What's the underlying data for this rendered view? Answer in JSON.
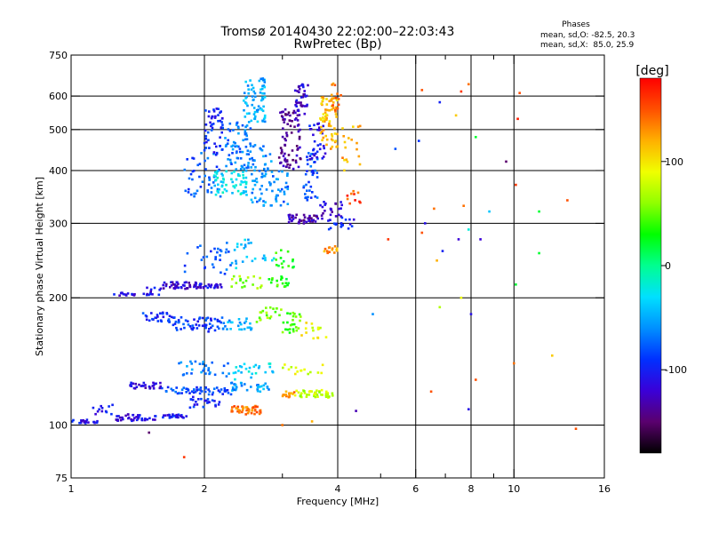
{
  "chart_data": {
    "type": "scatter",
    "title": "Tromsø 20140430 22:02:00–22:03:43",
    "subtitle": "RwPretec (Bp)",
    "xlabel": "Frequency [MHz]",
    "ylabel": "Stationary phase Virtual Height [km]",
    "x_scale": "log",
    "y_scale": "log",
    "xlim": [
      1,
      16
    ],
    "ylim": [
      75,
      750
    ],
    "x_ticks": [
      1,
      2,
      4,
      6,
      8,
      10,
      16
    ],
    "y_ticks": [
      75,
      100,
      200,
      300,
      400,
      500,
      600,
      750
    ],
    "x_minor_ticks": [
      3,
      5,
      7,
      9
    ],
    "grid": true,
    "phase_stats": {
      "header": "Phases",
      "line1": "mean, sd,O: -82.5, 20.3",
      "line2": "mean, sd,X:  85.0, 25.9"
    },
    "colorbar": {
      "label": "[deg]",
      "range": [
        -180,
        180
      ],
      "ticks": [
        -100,
        0,
        100
      ],
      "colors": [
        "#000000",
        "#5a006e",
        "#3a00d8",
        "#0030ff",
        "#0090ff",
        "#00e0ff",
        "#00ff90",
        "#00ff00",
        "#90ff00",
        "#f0ff00",
        "#ffb000",
        "#ff5000",
        "#ff0000"
      ]
    },
    "clusters": [
      {
        "x": [
          1.0,
          1.15
        ],
        "y": [
          101,
          103
        ],
        "phase": -108,
        "n": 18
      },
      {
        "x": [
          1.12,
          1.25
        ],
        "y": [
          106,
          112
        ],
        "phase": -102,
        "n": 12
      },
      {
        "x": [
          1.25,
          1.55
        ],
        "y": [
          102,
          106
        ],
        "phase": -112,
        "n": 40
      },
      {
        "x": [
          1.55,
          1.85
        ],
        "y": [
          104,
          106
        ],
        "phase": -105,
        "n": 30
      },
      {
        "x": [
          1.85,
          2.2
        ],
        "y": [
          110,
          118
        ],
        "phase": -98,
        "n": 25
      },
      {
        "x": [
          2.3,
          2.7
        ],
        "y": [
          106,
          111
        ],
        "phase": 140,
        "n": 45
      },
      {
        "x": [
          1.35,
          1.6
        ],
        "y": [
          122,
          126
        ],
        "phase": -118,
        "n": 30
      },
      {
        "x": [
          1.6,
          2.3
        ],
        "y": [
          118,
          123
        ],
        "phase": -85,
        "n": 55
      },
      {
        "x": [
          2.3,
          2.8
        ],
        "y": [
          120,
          126
        ],
        "phase": -55,
        "n": 35
      },
      {
        "x": [
          3.0,
          3.2
        ],
        "y": [
          116,
          121
        ],
        "phase": 130,
        "n": 14
      },
      {
        "x": [
          3.2,
          3.9
        ],
        "y": [
          116,
          121
        ],
        "phase": 75,
        "n": 45
      },
      {
        "x": [
          1.75,
          2.3
        ],
        "y": [
          130,
          142
        ],
        "phase": -60,
        "n": 30
      },
      {
        "x": [
          2.3,
          2.9
        ],
        "y": [
          128,
          140
        ],
        "phase": -35,
        "n": 25
      },
      {
        "x": [
          3.0,
          3.7
        ],
        "y": [
          132,
          140
        ],
        "phase": 80,
        "n": 15
      },
      {
        "x": [
          1.45,
          1.7
        ],
        "y": [
          175,
          185
        ],
        "phase": -95,
        "n": 28
      },
      {
        "x": [
          1.7,
          2.2
        ],
        "y": [
          166,
          180
        ],
        "phase": -90,
        "n": 55
      },
      {
        "x": [
          2.2,
          2.6
        ],
        "y": [
          168,
          180
        ],
        "phase": -50,
        "n": 25
      },
      {
        "x": [
          2.6,
          3.0
        ],
        "y": [
          175,
          190
        ],
        "phase": 60,
        "n": 20
      },
      {
        "x": [
          3.0,
          3.3
        ],
        "y": [
          165,
          185
        ],
        "phase": 45,
        "n": 25
      },
      {
        "x": [
          3.3,
          3.8
        ],
        "y": [
          160,
          175
        ],
        "phase": 90,
        "n": 15
      },
      {
        "x": [
          1.25,
          1.4
        ],
        "y": [
          201,
          206
        ],
        "phase": -112,
        "n": 14
      },
      {
        "x": [
          1.45,
          1.6
        ],
        "y": [
          203,
          213
        ],
        "phase": -108,
        "n": 14
      },
      {
        "x": [
          1.6,
          1.95
        ],
        "y": [
          210,
          218
        ],
        "phase": -120,
        "n": 45
      },
      {
        "x": [
          1.95,
          2.2
        ],
        "y": [
          211,
          216
        ],
        "phase": -110,
        "n": 25
      },
      {
        "x": [
          2.3,
          2.7
        ],
        "y": [
          210,
          225
        ],
        "phase": 60,
        "n": 18
      },
      {
        "x": [
          2.8,
          3.1
        ],
        "y": [
          212,
          225
        ],
        "phase": 35,
        "n": 18
      },
      {
        "x": [
          1.8,
          2.3
        ],
        "y": [
          225,
          270
        ],
        "phase": -80,
        "n": 30
      },
      {
        "x": [
          2.3,
          2.9
        ],
        "y": [
          235,
          275
        ],
        "phase": -40,
        "n": 25
      },
      {
        "x": [
          2.9,
          3.2
        ],
        "y": [
          235,
          260
        ],
        "phase": 30,
        "n": 15
      },
      {
        "x": [
          3.7,
          4.0
        ],
        "y": [
          255,
          265
        ],
        "phase": 125,
        "n": 14
      },
      {
        "x": [
          3.1,
          3.6
        ],
        "y": [
          300,
          315
        ],
        "phase": -130,
        "n": 45
      },
      {
        "x": [
          3.6,
          4.1
        ],
        "y": [
          305,
          340
        ],
        "phase": -120,
        "n": 25
      },
      {
        "x": [
          3.8,
          4.4
        ],
        "y": [
          290,
          310
        ],
        "phase": -100,
        "n": 20
      },
      {
        "x": [
          1.8,
          2.2
        ],
        "y": [
          345,
          440
        ],
        "phase": -78,
        "n": 45
      },
      {
        "x": [
          2.0,
          2.2
        ],
        "y": [
          440,
          560
        ],
        "phase": -95,
        "n": 50
      },
      {
        "x": [
          2.1,
          2.5
        ],
        "y": [
          350,
          400
        ],
        "phase": -30,
        "n": 60
      },
      {
        "x": [
          2.2,
          2.55
        ],
        "y": [
          400,
          520
        ],
        "phase": -70,
        "n": 70
      },
      {
        "x": [
          2.45,
          2.75
        ],
        "y": [
          520,
          660
        ],
        "phase": -50,
        "n": 70
      },
      {
        "x": [
          2.55,
          2.85
        ],
        "y": [
          330,
          460
        ],
        "phase": -60,
        "n": 60
      },
      {
        "x": [
          2.85,
          3.1
        ],
        "y": [
          330,
          400
        ],
        "phase": -65,
        "n": 25
      },
      {
        "x": [
          2.95,
          3.3
        ],
        "y": [
          400,
          560
        ],
        "phase": -135,
        "n": 80
      },
      {
        "x": [
          3.2,
          3.45
        ],
        "y": [
          540,
          640
        ],
        "phase": -120,
        "n": 35
      },
      {
        "x": [
          3.35,
          3.6
        ],
        "y": [
          340,
          440
        ],
        "phase": -85,
        "n": 40
      },
      {
        "x": [
          3.45,
          3.75
        ],
        "y": [
          420,
          520
        ],
        "phase": -110,
        "n": 30
      },
      {
        "x": [
          3.65,
          4.0
        ],
        "y": [
          450,
          600
        ],
        "phase": 115,
        "n": 65
      },
      {
        "x": [
          3.85,
          4.1
        ],
        "y": [
          550,
          660
        ],
        "phase": 140,
        "n": 18
      },
      {
        "x": [
          4.1,
          4.5
        ],
        "y": [
          400,
          520
        ],
        "phase": 120,
        "n": 18
      },
      {
        "x": [
          4.2,
          4.5
        ],
        "y": [
          330,
          360
        ],
        "phase": 155,
        "n": 10
      }
    ],
    "scattered": [
      {
        "x": 6.2,
        "y": 620,
        "phase": 150
      },
      {
        "x": 6.8,
        "y": 580,
        "phase": -100
      },
      {
        "x": 7.6,
        "y": 615,
        "phase": 160
      },
      {
        "x": 7.9,
        "y": 640,
        "phase": 140
      },
      {
        "x": 7.4,
        "y": 540,
        "phase": 110
      },
      {
        "x": 10.3,
        "y": 610,
        "phase": 150
      },
      {
        "x": 10.2,
        "y": 530,
        "phase": 170
      },
      {
        "x": 8.2,
        "y": 480,
        "phase": 20
      },
      {
        "x": 6.1,
        "y": 470,
        "phase": -90
      },
      {
        "x": 5.4,
        "y": 450,
        "phase": -80
      },
      {
        "x": 9.6,
        "y": 420,
        "phase": -150
      },
      {
        "x": 10.1,
        "y": 370,
        "phase": 160
      },
      {
        "x": 13.2,
        "y": 340,
        "phase": 150
      },
      {
        "x": 11.4,
        "y": 320,
        "phase": 20
      },
      {
        "x": 8.8,
        "y": 320,
        "phase": -40
      },
      {
        "x": 7.7,
        "y": 330,
        "phase": 140
      },
      {
        "x": 6.6,
        "y": 325,
        "phase": 140
      },
      {
        "x": 6.3,
        "y": 300,
        "phase": -110
      },
      {
        "x": 7.9,
        "y": 290,
        "phase": -20
      },
      {
        "x": 6.2,
        "y": 285,
        "phase": 150
      },
      {
        "x": 5.2,
        "y": 275,
        "phase": 160
      },
      {
        "x": 7.5,
        "y": 275,
        "phase": -120
      },
      {
        "x": 8.4,
        "y": 275,
        "phase": -120
      },
      {
        "x": 6.9,
        "y": 258,
        "phase": -100
      },
      {
        "x": 6.7,
        "y": 245,
        "phase": 120
      },
      {
        "x": 11.4,
        "y": 255,
        "phase": 20
      },
      {
        "x": 10.1,
        "y": 215,
        "phase": 20
      },
      {
        "x": 7.6,
        "y": 200,
        "phase": 90
      },
      {
        "x": 6.8,
        "y": 190,
        "phase": 70
      },
      {
        "x": 8.0,
        "y": 183,
        "phase": -110
      },
      {
        "x": 4.8,
        "y": 183,
        "phase": -60
      },
      {
        "x": 10.0,
        "y": 140,
        "phase": 140
      },
      {
        "x": 12.2,
        "y": 146,
        "phase": 110
      },
      {
        "x": 8.2,
        "y": 128,
        "phase": 150
      },
      {
        "x": 6.5,
        "y": 120,
        "phase": 150
      },
      {
        "x": 7.9,
        "y": 109,
        "phase": -110
      },
      {
        "x": 13.8,
        "y": 98,
        "phase": 150
      },
      {
        "x": 1.8,
        "y": 84,
        "phase": 160
      },
      {
        "x": 1.5,
        "y": 96,
        "phase": -150
      },
      {
        "x": 3.0,
        "y": 100,
        "phase": 140
      },
      {
        "x": 4.4,
        "y": 108,
        "phase": -130
      },
      {
        "x": 3.5,
        "y": 102,
        "phase": 120
      }
    ]
  }
}
